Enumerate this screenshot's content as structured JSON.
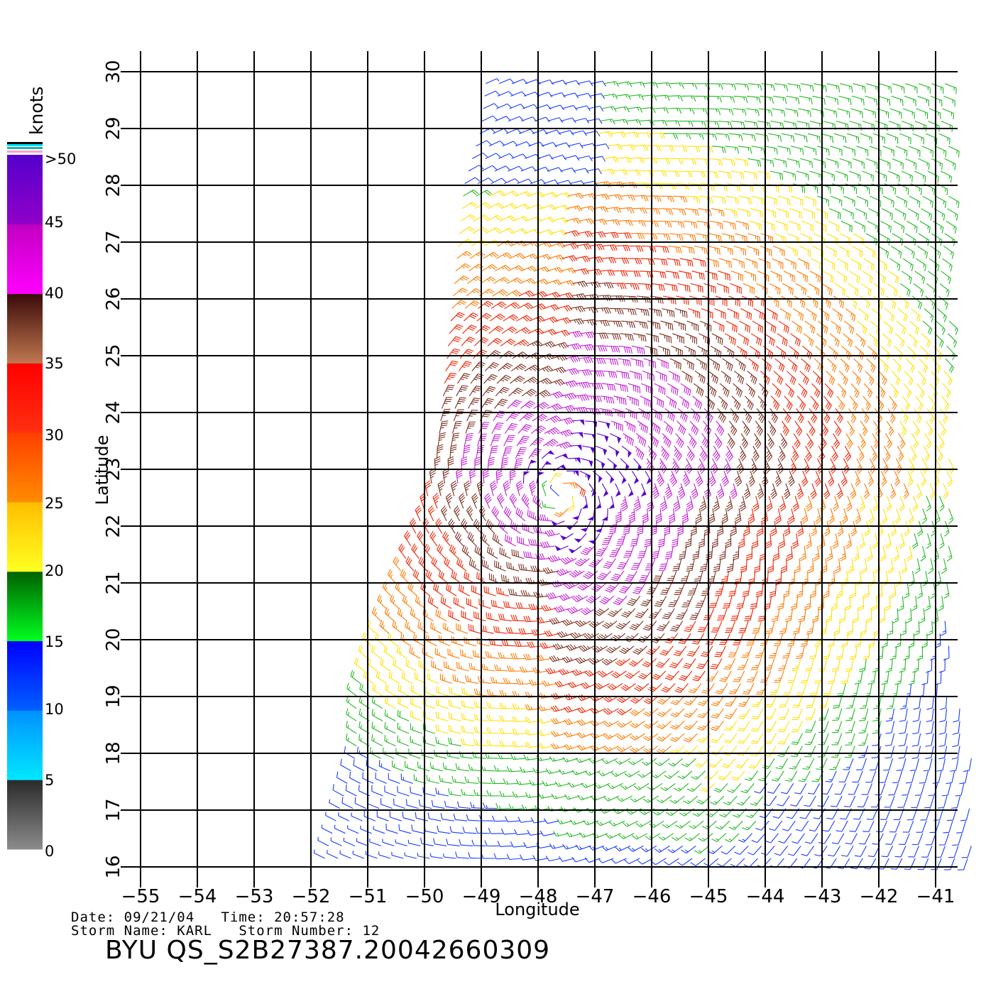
{
  "map": {
    "axes": {
      "xlabel": "Longitude",
      "ylabel": "Latitude",
      "xlim": [
        -55,
        -40.6
      ],
      "ylim": [
        16,
        30
      ],
      "x_ticks": [
        "−55",
        "−54",
        "−53",
        "−52",
        "−51",
        "−50",
        "−49",
        "−48",
        "−47",
        "−46",
        "−45",
        "−44",
        "−43",
        "−42",
        "−41"
      ],
      "y_ticks": [
        "16",
        "17",
        "18",
        "19",
        "20",
        "21",
        "22",
        "23",
        "24",
        "25",
        "26",
        "27",
        "28",
        "29",
        "30"
      ],
      "grid": true
    },
    "colorbar": {
      "unit": "knots",
      "labels": [
        ">50",
        "45",
        "40",
        "35",
        "30",
        "25",
        "20",
        "15",
        "10",
        "5",
        "0"
      ],
      "stops": [
        {
          "min": 0,
          "max": 5,
          "top": "#2a2a2a",
          "bottom": "#8c8c8c"
        },
        {
          "min": 5,
          "max": 10,
          "top": "#0090ff",
          "bottom": "#00e8ff"
        },
        {
          "min": 10,
          "max": 15,
          "top": "#0000ff",
          "bottom": "#0060ff"
        },
        {
          "min": 15,
          "max": 20,
          "top": "#006000",
          "bottom": "#00ff20"
        },
        {
          "min": 20,
          "max": 25,
          "top": "#ffbe00",
          "bottom": "#ffff20"
        },
        {
          "min": 25,
          "max": 30,
          "top": "#ff4000",
          "bottom": "#ff8c00"
        },
        {
          "min": 30,
          "max": 35,
          "top": "#ff0000",
          "bottom": "#ff3010"
        },
        {
          "min": 35,
          "max": 40,
          "top": "#3a0a0a",
          "bottom": "#c07850"
        },
        {
          "min": 40,
          "max": 45,
          "top": "#c000c0",
          "bottom": "#ff00ff"
        },
        {
          "min": 45,
          "max": 50,
          "top": "#5500cc",
          "bottom": "#9000c8"
        }
      ]
    },
    "wind_field": {
      "storm_center": [
        -47.6,
        22.55
      ],
      "description_colors": {
        "calm": "#555555",
        "light": "#1a3cff",
        "moderate": "#22b822",
        "fresh": "#ffe000",
        "strong": "#ff7a00",
        "gale": "#ee2200",
        "severe": "#7a3020",
        "storm": "#c020d0",
        "violent": "#5a00cc"
      }
    }
  },
  "info": {
    "line1": "Date: 09/21/04   Time: 20:57:28",
    "line2": "Storm Name: KARL   Storm Number: 12"
  },
  "product_id": "BYU QS_S2B27387.20042660309"
}
